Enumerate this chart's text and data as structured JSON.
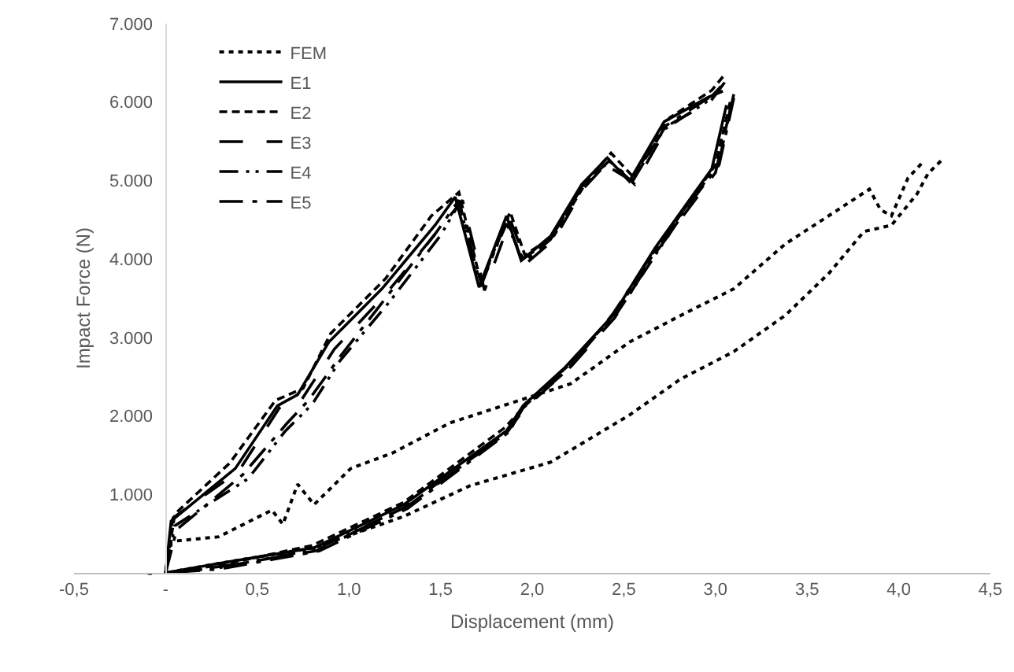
{
  "chart_data": {
    "type": "line",
    "xlabel": "Displacement (mm)",
    "ylabel": "Impact Force (N)",
    "xlim": [
      -0.5,
      4.5
    ],
    "ylim": [
      0,
      7000
    ],
    "xticks": [
      {
        "value": -0.5,
        "label": "-0,5"
      },
      {
        "value": 0,
        "label": "-"
      },
      {
        "value": 0.5,
        "label": "0,5"
      },
      {
        "value": 1,
        "label": "1,0"
      },
      {
        "value": 1.5,
        "label": "1,5"
      },
      {
        "value": 2,
        "label": "2,0"
      },
      {
        "value": 2.5,
        "label": "2,5"
      },
      {
        "value": 3,
        "label": "3,0"
      },
      {
        "value": 3.5,
        "label": "3,5"
      },
      {
        "value": 4,
        "label": "4,0"
      },
      {
        "value": 4.5,
        "label": "4,5"
      }
    ],
    "yticks": [
      {
        "value": 0,
        "label": "-"
      },
      {
        "value": 1000,
        "label": "1.000"
      },
      {
        "value": 2000,
        "label": "2.000"
      },
      {
        "value": 3000,
        "label": "3.000"
      },
      {
        "value": 4000,
        "label": "4.000"
      },
      {
        "value": 5000,
        "label": "5.000"
      },
      {
        "value": 6000,
        "label": "6.000"
      },
      {
        "value": 7000,
        "label": "7.000"
      }
    ],
    "grid": false,
    "legend": "top left",
    "marker": "none",
    "series": [
      {
        "name": "FEM",
        "color": "#000000",
        "line_style": "dotted",
        "x": [
          0,
          0.03,
          0.29,
          0.58,
          0.64,
          0.72,
          0.81,
          1.01,
          1.24,
          1.55,
          1.84,
          2.21,
          2.53,
          2.81,
          3.1,
          3.38,
          3.67,
          3.84,
          3.9,
          3.96,
          4.05,
          4.13
        ],
        "values": [
          0,
          400,
          460,
          800,
          620,
          1130,
          870,
          1330,
          1530,
          1910,
          2130,
          2410,
          2940,
          3280,
          3620,
          4190,
          4630,
          4890,
          4630,
          4550,
          5030,
          5230
        ]
      },
      {
        "name": "E1",
        "color": "#000000",
        "line_style": "solid",
        "x": [
          0,
          0.03,
          0.38,
          0.61,
          0.72,
          0.89,
          1.18,
          1.47,
          1.58,
          1.71,
          1.86,
          1.94,
          2.1,
          2.27,
          2.41,
          2.53,
          2.72,
          2.96,
          3.04
        ],
        "values": [
          0,
          660,
          1330,
          2130,
          2270,
          2940,
          3620,
          4430,
          4790,
          3640,
          4550,
          3980,
          4290,
          4950,
          5290,
          4990,
          5750,
          6060,
          6140
        ]
      },
      {
        "name": "E2",
        "color": "#000000",
        "line_style": "dashed",
        "x": [
          0,
          0.05,
          0.35,
          0.6,
          0.75,
          0.9,
          1.2,
          1.45,
          1.6,
          1.72,
          1.88,
          1.96,
          2.12,
          2.3,
          2.43,
          2.55,
          2.75,
          2.98,
          3.05
        ],
        "values": [
          0,
          750,
          1400,
          2200,
          2350,
          3050,
          3750,
          4550,
          4850,
          3700,
          4600,
          4050,
          4300,
          5000,
          5350,
          5050,
          5800,
          6150,
          6350
        ]
      },
      {
        "name": "E3",
        "color": "#000000",
        "line_style": "longdash",
        "x": [
          0,
          0.04,
          0.4,
          0.62,
          0.74,
          0.92,
          1.2,
          1.5,
          1.62,
          1.74,
          1.88,
          1.97,
          2.12,
          2.28,
          2.42,
          2.56,
          2.74,
          2.97,
          3.05
        ],
        "values": [
          0,
          700,
          1300,
          2100,
          2200,
          2850,
          3550,
          4400,
          4750,
          3600,
          4500,
          3950,
          4250,
          4900,
          5250,
          4950,
          5700,
          6000,
          6250
        ]
      },
      {
        "name": "E4",
        "color": "#000000",
        "line_style": "dashdotdot",
        "x": [
          0,
          0.05,
          0.45,
          0.65,
          0.8,
          0.95,
          1.22,
          1.5,
          1.6,
          1.72,
          1.86,
          1.95,
          2.1,
          2.26,
          2.4,
          2.54,
          2.72,
          2.95,
          3.03
        ],
        "values": [
          0,
          600,
          1200,
          1800,
          2150,
          2700,
          3450,
          4300,
          4700,
          3700,
          4450,
          4000,
          4250,
          4900,
          5200,
          5000,
          5650,
          6000,
          6200
        ]
      },
      {
        "name": "E5",
        "color": "#000000",
        "line_style": "dashdot",
        "x": [
          0,
          0.06,
          0.42,
          0.66,
          0.78,
          0.95,
          1.2,
          1.48,
          1.6,
          1.72,
          1.86,
          1.95,
          2.1,
          2.28,
          2.42,
          2.55,
          2.73,
          2.96,
          3.05
        ],
        "values": [
          0,
          550,
          1250,
          1900,
          2200,
          2750,
          3500,
          4350,
          4750,
          3650,
          4500,
          3950,
          4250,
          4950,
          5250,
          5000,
          5700,
          6050,
          6200
        ]
      },
      {
        "color": "#000000",
        "line_style": "dotted",
        "x": [
          4.23,
          4.16,
          4.1,
          3.96,
          3.81,
          3.62,
          3.38,
          3.1,
          2.81,
          2.53,
          2.1,
          1.66,
          1.3,
          0.81,
          0.29,
          0
        ],
        "values": [
          5250,
          5090,
          4830,
          4430,
          4350,
          3820,
          3280,
          2820,
          2470,
          2010,
          1410,
          1110,
          720,
          320,
          120,
          0
        ]
      },
      {
        "color": "#000000",
        "line_style": "solid",
        "x": [
          3.06,
          2.98,
          2.67,
          2.44,
          2.18,
          1.95,
          1.86,
          1.3,
          0.81,
          0.29,
          0
        ],
        "values": [
          5960,
          5150,
          4140,
          3280,
          2620,
          2130,
          1810,
          870,
          320,
          120,
          0
        ]
      },
      {
        "color": "#000000",
        "line_style": "dashed",
        "x": [
          3.08,
          3.0,
          2.7,
          2.45,
          2.2,
          1.97,
          1.85,
          1.3,
          0.8,
          0.3,
          0
        ],
        "values": [
          6000,
          5200,
          4200,
          3300,
          2650,
          2150,
          1850,
          900,
          350,
          100,
          0
        ]
      },
      {
        "color": "#000000",
        "line_style": "longdash",
        "x": [
          3.08,
          3.0,
          2.68,
          2.45,
          2.2,
          1.96,
          1.86,
          1.3,
          0.82,
          0.3,
          0
        ],
        "values": [
          5900,
          5100,
          4100,
          3250,
          2600,
          2100,
          1780,
          830,
          280,
          80,
          0
        ]
      },
      {
        "color": "#000000",
        "line_style": "dashdotdot",
        "x": [
          3.1,
          3.02,
          2.7,
          2.46,
          2.2,
          1.96,
          1.88,
          1.32,
          0.82,
          0.28,
          0
        ],
        "values": [
          6100,
          5250,
          4150,
          3300,
          2650,
          2150,
          1820,
          850,
          300,
          60,
          0
        ]
      },
      {
        "color": "#000000",
        "line_style": "dashdot",
        "x": [
          3.1,
          3.02,
          2.68,
          2.44,
          2.2,
          1.95,
          1.87,
          1.32,
          0.84,
          0.3,
          0
        ],
        "values": [
          6050,
          5200,
          4150,
          3300,
          2600,
          2100,
          1790,
          820,
          280,
          50,
          0
        ]
      }
    ]
  }
}
